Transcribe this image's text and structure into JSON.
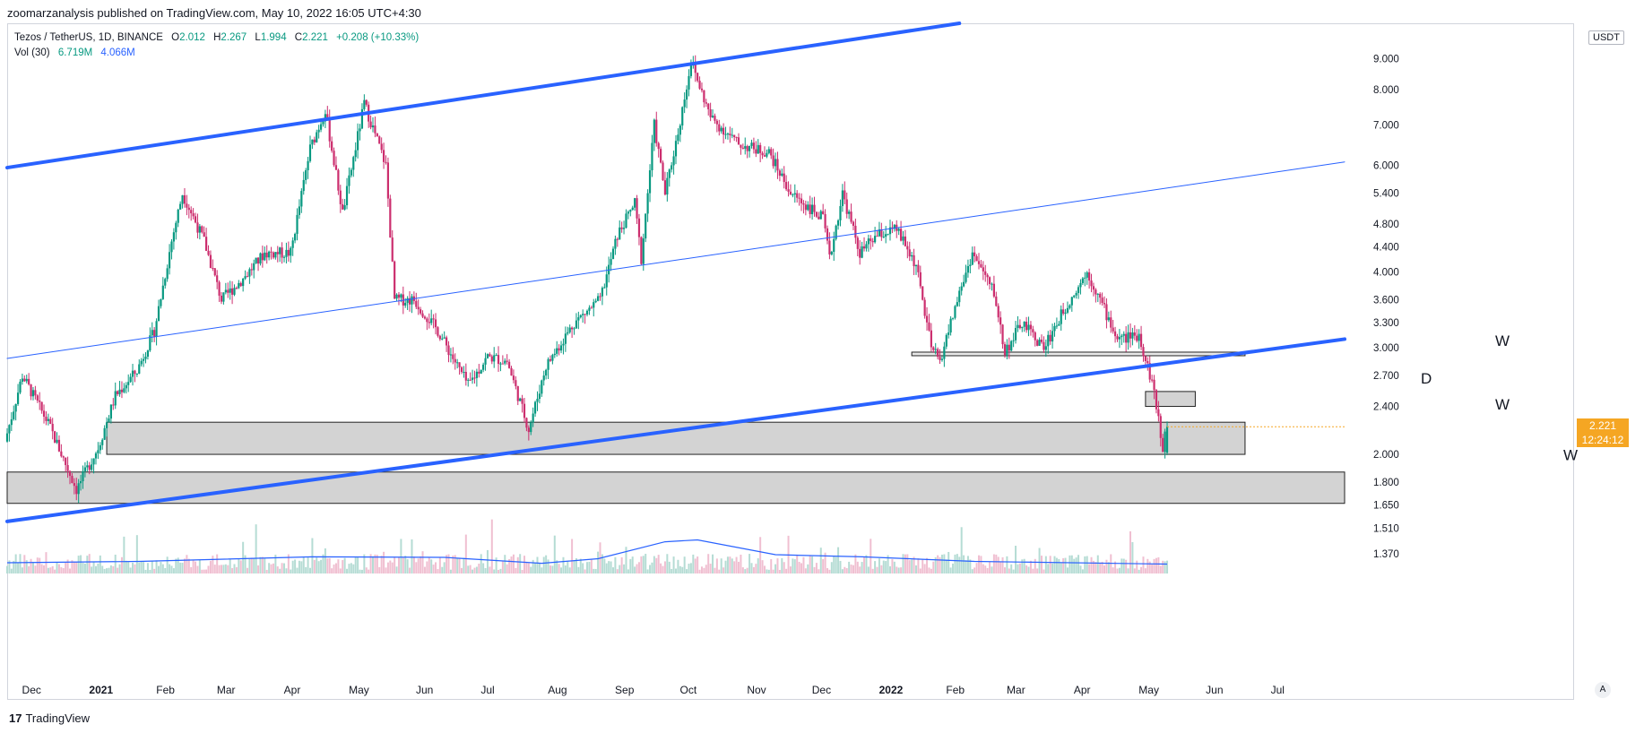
{
  "header": {
    "published_text": "zoomarzanalysis published on TradingView.com, May 10, 2022 16:05 UTC+4:30"
  },
  "legend": {
    "symbol": "Tezos / TetherUS, 1D, BINANCE",
    "open_label": "O",
    "open": "2.012",
    "high_label": "H",
    "high": "2.267",
    "low_label": "L",
    "low": "1.994",
    "close_label": "C",
    "close": "2.221",
    "change": "+0.208 (+10.33%)",
    "vol_label": "Vol (30)",
    "vol_value": "6.719M",
    "vol_ma": "4.066M"
  },
  "price_scale": {
    "currency": "USDT",
    "ticks": [
      "9.000",
      "8.000",
      "7.000",
      "6.000",
      "5.400",
      "4.800",
      "4.400",
      "4.000",
      "3.600",
      "3.300",
      "3.000",
      "2.700",
      "2.400",
      "2.000",
      "1.800",
      "1.650",
      "1.510",
      "1.370"
    ],
    "last_price": "2.221",
    "countdown": "12:24:12",
    "auto_label": "A"
  },
  "time_scale": {
    "labels": [
      "Dec",
      "2021",
      "Feb",
      "Mar",
      "Apr",
      "May",
      "Jun",
      "Jul",
      "Aug",
      "Sep",
      "Oct",
      "Nov",
      "Dec",
      "2022",
      "Feb",
      "Mar",
      "Apr",
      "May",
      "Jun",
      "Jul"
    ]
  },
  "annotations": {
    "w1": "W",
    "d": "D",
    "w2": "W",
    "w3": "W"
  },
  "footer": {
    "brand": "TradingView",
    "logo_text": "17"
  },
  "colors": {
    "up": "#089981",
    "down": "#cc2e6e",
    "channel": "#2962ff",
    "zone_fill": "#d3d3d3",
    "last_price": "#f5a623",
    "volume_ma": "#2962ff"
  },
  "chart_data": {
    "type": "candlestick",
    "symbol": "XTZ/USDT",
    "interval": "1D",
    "scale": "log",
    "x_range": [
      "2020-11-20",
      "2022-07-31"
    ],
    "y_range": [
      1.25,
      10.3
    ],
    "price_path": [
      [
        "2020-11-20",
        2.1
      ],
      [
        "2020-11-28",
        2.7
      ],
      [
        "2020-12-10",
        2.25
      ],
      [
        "2020-12-23",
        1.75
      ],
      [
        "2021-01-02",
        2.05
      ],
      [
        "2021-01-10",
        2.5
      ],
      [
        "2021-01-20",
        2.75
      ],
      [
        "2021-01-28",
        3.2
      ],
      [
        "2021-02-05",
        4.5
      ],
      [
        "2021-02-10",
        5.4
      ],
      [
        "2021-02-20",
        4.5
      ],
      [
        "2021-02-28",
        3.6
      ],
      [
        "2021-03-10",
        3.9
      ],
      [
        "2021-03-20",
        4.3
      ],
      [
        "2021-04-01",
        4.3
      ],
      [
        "2021-04-10",
        6.4
      ],
      [
        "2021-04-17",
        7.4
      ],
      [
        "2021-04-25",
        5.0
      ],
      [
        "2021-05-05",
        7.6
      ],
      [
        "2021-05-15",
        6.0
      ],
      [
        "2021-05-19",
        3.6
      ],
      [
        "2021-05-28",
        3.6
      ],
      [
        "2021-06-08",
        3.2
      ],
      [
        "2021-06-22",
        2.6
      ],
      [
        "2021-07-01",
        2.9
      ],
      [
        "2021-07-10",
        2.85
      ],
      [
        "2021-07-20",
        2.2
      ],
      [
        "2021-07-28",
        2.8
      ],
      [
        "2021-08-10",
        3.3
      ],
      [
        "2021-08-22",
        3.6
      ],
      [
        "2021-08-30",
        4.6
      ],
      [
        "2021-09-07",
        5.2
      ],
      [
        "2021-09-10",
        4.2
      ],
      [
        "2021-09-16",
        7.0
      ],
      [
        "2021-09-21",
        5.4
      ],
      [
        "2021-09-27",
        6.8
      ],
      [
        "2021-10-03",
        8.9
      ],
      [
        "2021-10-12",
        7.2
      ],
      [
        "2021-10-25",
        6.5
      ],
      [
        "2021-11-08",
        6.3
      ],
      [
        "2021-11-18",
        5.4
      ],
      [
        "2021-12-03",
        4.9
      ],
      [
        "2021-12-06",
        4.2
      ],
      [
        "2021-12-12",
        5.4
      ],
      [
        "2021-12-20",
        4.3
      ],
      [
        "2021-12-28",
        4.6
      ],
      [
        "2022-01-06",
        4.7
      ],
      [
        "2022-01-15",
        4.1
      ],
      [
        "2022-01-22",
        3.0
      ],
      [
        "2022-01-26",
        2.85
      ],
      [
        "2022-02-03",
        3.6
      ],
      [
        "2022-02-10",
        4.3
      ],
      [
        "2022-02-20",
        3.7
      ],
      [
        "2022-02-25",
        2.95
      ],
      [
        "2022-03-05",
        3.3
      ],
      [
        "2022-03-15",
        3.0
      ],
      [
        "2022-03-25",
        3.5
      ],
      [
        "2022-04-04",
        4.0
      ],
      [
        "2022-04-10",
        3.6
      ],
      [
        "2022-04-18",
        3.1
      ],
      [
        "2022-04-28",
        3.15
      ],
      [
        "2022-05-05",
        2.55
      ],
      [
        "2022-05-09",
        2.012
      ],
      [
        "2022-05-10",
        2.221
      ]
    ],
    "last_candle": {
      "date": "2022-05-10",
      "open": 2.012,
      "high": 2.267,
      "low": 1.994,
      "close": 2.221
    },
    "trendlines": [
      {
        "name": "channel-upper",
        "from": [
          "2020-11-20",
          5.95
        ],
        "to": [
          "2022-02-03",
          10.3
        ]
      },
      {
        "name": "channel-mid",
        "from": [
          "2020-11-20",
          2.88
        ],
        "to": [
          "2022-07-31",
          6.08
        ]
      },
      {
        "name": "channel-lower",
        "from": [
          "2020-11-20",
          1.55
        ],
        "to": [
          "2022-07-31",
          3.1
        ]
      }
    ],
    "zones": [
      {
        "label": "W",
        "from": "2021-01-05",
        "to": "2022-06-15",
        "low": 2.0,
        "high": 2.26
      },
      {
        "label": "W",
        "from": "2020-11-20",
        "to": "2022-07-31",
        "low": 1.66,
        "high": 1.87
      },
      {
        "label": "D",
        "from": "2022-04-30",
        "to": "2022-05-23",
        "low": 2.4,
        "high": 2.54
      }
    ],
    "levels": [
      {
        "label": "W",
        "from": "2022-01-12",
        "to": "2022-06-15",
        "price": 2.93
      }
    ],
    "volume_ma_path": [
      [
        "2020-11-20",
        0.4
      ],
      [
        "2021-01-20",
        0.45
      ],
      [
        "2021-04-10",
        0.62
      ],
      [
        "2021-06-10",
        0.6
      ],
      [
        "2021-07-25",
        0.38
      ],
      [
        "2021-08-20",
        0.55
      ],
      [
        "2021-09-20",
        1.18
      ],
      [
        "2021-10-05",
        1.25
      ],
      [
        "2021-11-10",
        0.7
      ],
      [
        "2021-12-20",
        0.62
      ],
      [
        "2022-02-10",
        0.45
      ],
      [
        "2022-05-10",
        0.35
      ]
    ]
  }
}
